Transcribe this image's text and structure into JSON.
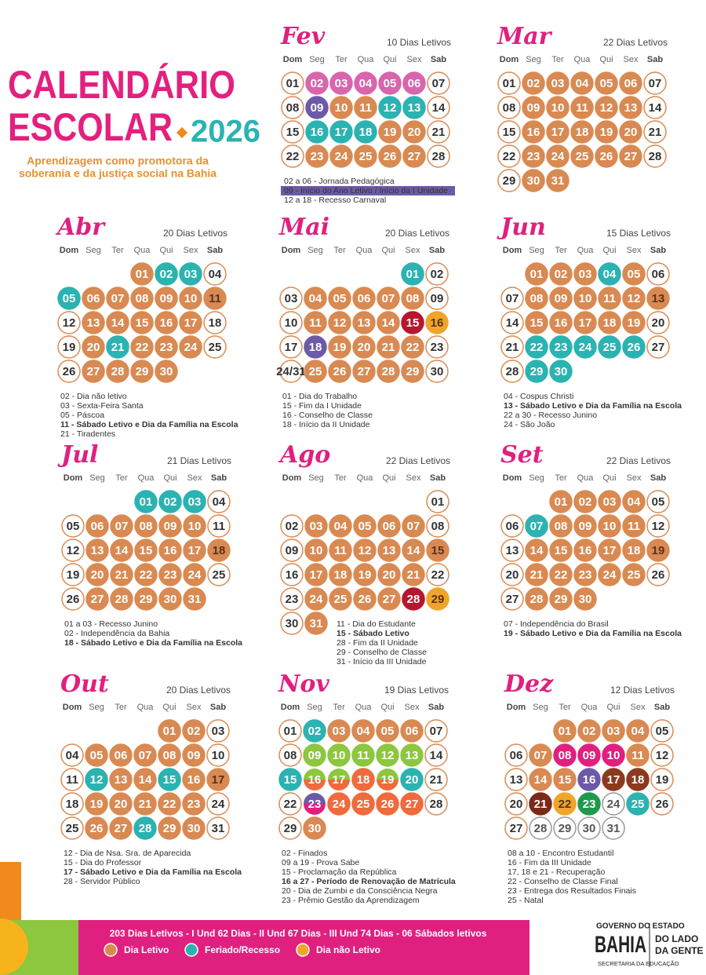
{
  "header": {
    "title_line1": "CALENDÁRIO",
    "title_line2": "ESCOLAR",
    "year": "2026",
    "subtitle_line1": "Aprendizagem como promotora da",
    "subtitle_line2": "soberania e da justiça social na Bahia"
  },
  "weekdays": [
    "Dom",
    "Seg",
    "Ter",
    "Qua",
    "Qui",
    "Sex",
    "Sab"
  ],
  "palette": {
    "w": {
      "fill": "#ffffff",
      "stroke": "#d98a52",
      "text": "#333333"
    },
    "x": {
      "fill": "#ffffff",
      "stroke": "#999999",
      "text": "#555555"
    },
    "o": {
      "fill": "#d98a52",
      "stroke": "#d98a52",
      "text": "#ffffff"
    },
    "O": {
      "fill": "#d98a52",
      "stroke": "#d98a52",
      "text": "#5a3218"
    },
    "t": {
      "fill": "#2bb3b1",
      "stroke": "#2bb3b1",
      "text": "#ffffff"
    },
    "y": {
      "fill": "#f0a52a",
      "stroke": "#f0a52a",
      "text": "#5a3218"
    },
    "p": {
      "fill": "#d865ad",
      "stroke": "#d865ad",
      "text": "#ffffff"
    },
    "m": {
      "fill": "#e0207f",
      "stroke": "#e0207f",
      "text": "#ffffff"
    },
    "r": {
      "fill": "#b5172e",
      "stroke": "#b5172e",
      "text": "#ffffff"
    },
    "v": {
      "fill": "#6c5aa8",
      "stroke": "#6c5aa8",
      "text": "#ffffff"
    },
    "g": {
      "fill": "#8dc63f",
      "stroke": "#8dc63f",
      "text": "#ffffff"
    },
    "G": {
      "fill": "#1e9a4a",
      "stroke": "#1e9a4a",
      "text": "#ffffff"
    },
    "c": {
      "fill": "#ef6a3c",
      "stroke": "#ef6a3c",
      "text": "#ffffff"
    },
    "b": {
      "fill": "#8b3a1e",
      "stroke": "#8b3a1e",
      "text": "#ffffff"
    },
    "B": {
      "fill": "#7a2a18",
      "stroke": "#7a2a18",
      "text": "#ffffff"
    },
    "X": {
      "fill": [
        "#8dc63f",
        "#ef6a3c"
      ],
      "stroke": "#ef6a3c",
      "text": "#ffffff"
    },
    "Z": {
      "fill": [
        "#6c5aa8",
        "#e0207f"
      ],
      "stroke": "#6c5aa8",
      "text": "#ffffff"
    }
  },
  "months": [
    {
      "name": "Fev",
      "letivos": "10 Dias Letivos",
      "weeks": [
        [
          "01",
          "02",
          "03",
          "04",
          "05",
          "06",
          "07"
        ],
        [
          "08",
          "09",
          "10",
          "11",
          "12",
          "13",
          "14"
        ],
        [
          "15",
          "16",
          "17",
          "18",
          "19",
          "20",
          "21"
        ],
        [
          "22",
          "23",
          "24",
          "25",
          "26",
          "27",
          "28"
        ]
      ],
      "styles": [
        "wpppppw",
        "wvoottw",
        "wtttoow",
        "wooooow"
      ],
      "notes": [
        "02 a 06 - Jornada Pedagógica",
        {
          "text": "09 - Início do Ano Letivo / Início da I Unidade",
          "style": "highlight"
        },
        "12 a 18 - Recesso Carnaval"
      ]
    },
    {
      "name": "Mar",
      "letivos": "22 Dias Letivos",
      "weeks": [
        [
          "01",
          "02",
          "03",
          "04",
          "05",
          "06",
          "07"
        ],
        [
          "08",
          "09",
          "10",
          "11",
          "12",
          "13",
          "14"
        ],
        [
          "15",
          "16",
          "17",
          "18",
          "19",
          "20",
          "21"
        ],
        [
          "22",
          "23",
          "24",
          "25",
          "26",
          "27",
          "28"
        ],
        [
          "29",
          "30",
          "31",
          null,
          null,
          null,
          null
        ]
      ],
      "styles": [
        "wooooow",
        "wooooow",
        "wooooow",
        "wooooow",
        "woo    "
      ],
      "notes": []
    },
    {
      "name": "Abr",
      "letivos": "20 Dias Letivos",
      "weeks": [
        [
          null,
          null,
          null,
          "01",
          "02",
          "03",
          "04"
        ],
        [
          "05",
          "06",
          "07",
          "08",
          "09",
          "10",
          "11"
        ],
        [
          "12",
          "13",
          "14",
          "15",
          "16",
          "17",
          "18"
        ],
        [
          "19",
          "20",
          "21",
          "22",
          "23",
          "24",
          "25"
        ],
        [
          "26",
          "27",
          "28",
          "29",
          "30",
          null,
          null
        ]
      ],
      "styles": [
        "   ottw",
        "toooooO",
        "wooooow",
        "wotooow",
        "woooo  "
      ],
      "notes": [
        "02 - Dia não letivo",
        "03 - Sexta-Feira Santa",
        "05 - Páscoa",
        {
          "text": "11 - Sábado Letivo e Dia da Família na Escola",
          "style": "bold"
        },
        "21 - Tiradentes"
      ]
    },
    {
      "name": "Mai",
      "letivos": "20 Dias Letivos",
      "weeks": [
        [
          null,
          null,
          null,
          null,
          null,
          "01",
          "02"
        ],
        [
          "03",
          "04",
          "05",
          "06",
          "07",
          "08",
          "09"
        ],
        [
          "10",
          "11",
          "12",
          "13",
          "14",
          "15",
          "16"
        ],
        [
          "17",
          "18",
          "19",
          "20",
          "21",
          "22",
          "23"
        ],
        [
          "24/31",
          "25",
          "26",
          "27",
          "28",
          "29",
          "30"
        ]
      ],
      "styles": [
        "     tw",
        "wooooow",
        "woooory",
        "wvoooow",
        "wooooow"
      ],
      "notes": [
        "01 - Dia do Trabalho",
        "15 - Fim da I Unidade",
        "16 - Conselho de Classe",
        "18 - Início da II Unidade"
      ]
    },
    {
      "name": "Jun",
      "letivos": "15 Dias Letivos",
      "weeks": [
        [
          null,
          "01",
          "02",
          "03",
          "04",
          "05",
          "06"
        ],
        [
          "07",
          "08",
          "09",
          "10",
          "11",
          "12",
          "13"
        ],
        [
          "14",
          "15",
          "16",
          "17",
          "18",
          "19",
          "20"
        ],
        [
          "21",
          "22",
          "23",
          "24",
          "25",
          "26",
          "27"
        ],
        [
          "28",
          "29",
          "30",
          null,
          null,
          null,
          null
        ]
      ],
      "styles": [
        " oootow",
        "woooooO",
        "wooooow",
        "wtttttw",
        "wtt    "
      ],
      "notes": [
        "04 - Cospus Christi",
        {
          "text": "13 - Sábado Letivo e Dia da Família na Escola",
          "style": "bold"
        },
        "22 a 30 - Recesso Junino",
        "24 - São João"
      ]
    },
    {
      "name": "Jul",
      "letivos": "21 Dias Letivos",
      "weeks": [
        [
          null,
          null,
          null,
          "01",
          "02",
          "03",
          "04"
        ],
        [
          "05",
          "06",
          "07",
          "08",
          "09",
          "10",
          "11"
        ],
        [
          "12",
          "13",
          "14",
          "15",
          "16",
          "17",
          "18"
        ],
        [
          "19",
          "20",
          "21",
          "22",
          "23",
          "24",
          "25"
        ],
        [
          "26",
          "27",
          "28",
          "29",
          "30",
          "31",
          null
        ]
      ],
      "styles": [
        "   tttw",
        "wooooow",
        "woooooO",
        "wooooow",
        "wooooo "
      ],
      "notes": [
        "01 a 03 - Recesso Junino",
        "02 - Independência da Bahia",
        {
          "text": "18 - Sábado Letivo e Dia da Família na Escola",
          "style": "bold"
        }
      ]
    },
    {
      "name": "Ago",
      "letivos": "22 Dias Letivos",
      "weeks": [
        [
          null,
          null,
          null,
          null,
          null,
          null,
          "01"
        ],
        [
          "02",
          "03",
          "04",
          "05",
          "06",
          "07",
          "08"
        ],
        [
          "09",
          "10",
          "11",
          "12",
          "13",
          "14",
          "15"
        ],
        [
          "16",
          "17",
          "18",
          "19",
          "20",
          "21",
          "22"
        ],
        [
          "23",
          "24",
          "25",
          "26",
          "27",
          "28",
          "29"
        ],
        [
          "30",
          "31",
          null,
          null,
          null,
          null,
          null
        ]
      ],
      "styles": [
        "      w",
        "wooooow",
        "woooooO",
        "wooooow",
        "woooory",
        "wo     "
      ],
      "notes": [
        "11 - Dia do Estudante",
        {
          "text": "15 - Sábado Letivo",
          "style": "bold"
        },
        "28 - Fim da II Unidade",
        "29 - Conselho de Classe",
        "31 - Início da III Unidade"
      ]
    },
    {
      "name": "Set",
      "letivos": "22 Dias Letivos",
      "weeks": [
        [
          null,
          null,
          "01",
          "02",
          "03",
          "04",
          "05"
        ],
        [
          "06",
          "07",
          "08",
          "09",
          "10",
          "11",
          "12"
        ],
        [
          "13",
          "14",
          "15",
          "16",
          "17",
          "18",
          "19"
        ],
        [
          "20",
          "21",
          "22",
          "23",
          "24",
          "25",
          "26"
        ],
        [
          "27",
          "28",
          "29",
          "30",
          null,
          null,
          null
        ]
      ],
      "styles": [
        "  oooow",
        "wtoooow",
        "woooooO",
        "wooooow",
        "wooo   "
      ],
      "notes": [
        "07 - Independência do Brasil",
        {
          "text": "19 - Sábado Letivo e Dia da Família na Escola",
          "style": "bold"
        }
      ]
    },
    {
      "name": "Out",
      "letivos": "20 Dias Letivos",
      "weeks": [
        [
          null,
          null,
          null,
          null,
          "01",
          "02",
          "03"
        ],
        [
          "04",
          "05",
          "06",
          "07",
          "08",
          "09",
          "10"
        ],
        [
          "11",
          "12",
          "13",
          "14",
          "15",
          "16",
          "17"
        ],
        [
          "18",
          "19",
          "20",
          "21",
          "22",
          "23",
          "24"
        ],
        [
          "25",
          "26",
          "27",
          "28",
          "29",
          "30",
          "31"
        ]
      ],
      "styles": [
        "    oow",
        "wooooow",
        "wtootoO",
        "wooooow",
        "wootoow"
      ],
      "notes": [
        "12 - Dia de Nsa. Sra. de Aparecida",
        "15 - Dia do Professor",
        {
          "text": "17 - Sábado Letivo e Dia da Família na Escola",
          "style": "bold"
        },
        "28 - Servidor Público"
      ]
    },
    {
      "name": "Nov",
      "letivos": "19 Dias Letivos",
      "weeks": [
        [
          "01",
          "02",
          "03",
          "04",
          "05",
          "06",
          "07"
        ],
        [
          "08",
          "09",
          "10",
          "11",
          "12",
          "13",
          "14"
        ],
        [
          "15",
          "16",
          "17",
          "18",
          "19",
          "20",
          "21"
        ],
        [
          "22",
          "23",
          "24",
          "25",
          "26",
          "27",
          "28"
        ],
        [
          "29",
          "30",
          null,
          null,
          null,
          null,
          null
        ]
      ],
      "styles": [
        "wtoooow",
        "wgggggw",
        "tXXcXtw",
        "wZccccw",
        "wo     "
      ],
      "notes": [
        "02 - Finados",
        "09 a 19 - Prova Sabe",
        "15 - Proclamação da República",
        {
          "text": "16 a 27 - Período de Renovação de Matrícula",
          "style": "bold"
        },
        "20 - Dia de Zumbi e da Consciência Negra",
        "23 - Prêmio Gestão da Aprendizagem"
      ]
    },
    {
      "name": "Dez",
      "letivos": "12 Dias Letivos",
      "weeks": [
        [
          null,
          null,
          "01",
          "02",
          "03",
          "04",
          "05"
        ],
        [
          "06",
          "07",
          "08",
          "09",
          "10",
          "11",
          "12"
        ],
        [
          "13",
          "14",
          "15",
          "16",
          "17",
          "18",
          "19"
        ],
        [
          "20",
          "21",
          "22",
          "23",
          "24",
          "25",
          "26"
        ],
        [
          "27",
          "28",
          "29",
          "30",
          "31",
          null,
          null
        ]
      ],
      "styles": [
        "  oooow",
        "wommmow",
        "woovbbw",
        "wByGxtw",
        "wxxxx  "
      ],
      "notes": [
        "08 a 10 - Encontro Estudantil",
        "16 - Fim da III Unidade",
        "17, 18 e 21 - Recuperação",
        "22 - Conselho de Classe Final",
        "23 - Entrega dos Resultados Finais",
        "25 - Natal"
      ]
    }
  ],
  "footer": {
    "summary": "203 Dias Letivos - I Und 62 Dias - II Und 67 Dias - III Und 74 Dias - 06 Sábados letivos",
    "legend": [
      {
        "label": "Dia Letivo",
        "color": "#d98a52"
      },
      {
        "label": "Feriado/Recesso",
        "color": "#2bb3b1"
      },
      {
        "label": "Dia não Letivo",
        "color": "#f0a52a"
      }
    ],
    "logo": {
      "line1": "GOVERNO DO ESTADO",
      "name": "BAHIA",
      "line3": "SECRETARIA DA EDUCAÇÃO",
      "slogan1": "DO LADO",
      "slogan2": "DA GENTE"
    }
  }
}
